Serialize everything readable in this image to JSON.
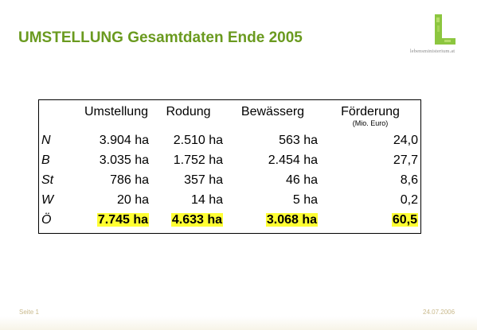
{
  "slide": {
    "title": "UMSTELLUNG Gesamtdaten Ende 2005",
    "logo_text": "lebensministerium.at",
    "colors": {
      "title": "#6a9a1f",
      "highlight": "#ffff33",
      "logo_green": "#8cc63f"
    }
  },
  "table": {
    "headers": [
      "Umstellung",
      "Rodung",
      "Bewässerg",
      "Förderung"
    ],
    "unit_note": "(Mio. Euro)",
    "rows": [
      {
        "label": "N",
        "cells": [
          "3.904 ha",
          "2.510 ha",
          "563 ha",
          "24,0"
        ]
      },
      {
        "label": "B",
        "cells": [
          "3.035 ha",
          "1.752 ha",
          "2.454 ha",
          "27,7"
        ]
      },
      {
        "label": "St",
        "cells": [
          "786 ha",
          "357 ha",
          "46 ha",
          "8,6"
        ]
      },
      {
        "label": "W",
        "cells": [
          "20 ha",
          "14 ha",
          "5 ha",
          "0,2"
        ]
      },
      {
        "label": "Ö",
        "cells": [
          "7.745 ha",
          "4.633 ha",
          "3.068 ha",
          "60,5"
        ]
      }
    ]
  },
  "footer": {
    "page": "Seite 1",
    "date": "24.07.2006"
  }
}
